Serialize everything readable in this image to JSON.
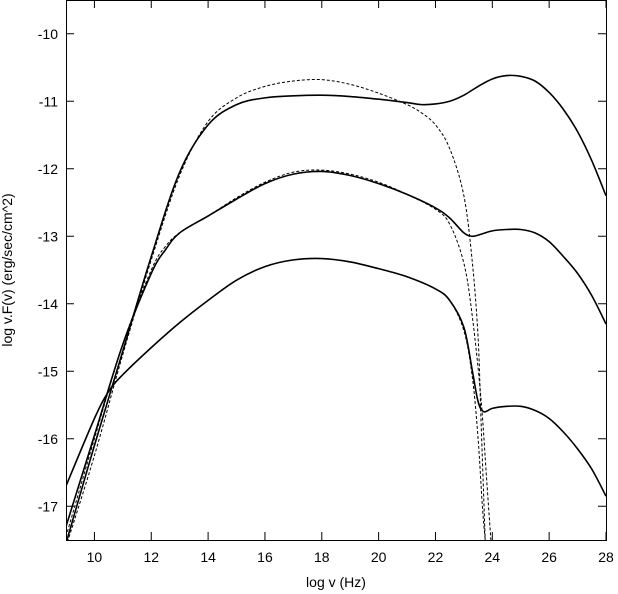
{
  "chart_data": {
    "type": "line",
    "xlabel": "log v (Hz)",
    "ylabel": "log v.F(v) (erg/sec/cm^2)",
    "xlim": [
      9,
      28
    ],
    "ylim": [
      -17.5,
      -9.5
    ],
    "xticks": [
      10,
      12,
      14,
      16,
      18,
      20,
      22,
      24,
      26,
      28
    ],
    "yticks": [
      -17,
      -16,
      -15,
      -14,
      -13,
      -12,
      -11,
      -10
    ],
    "xtick_labels": [
      "10",
      "12",
      "14",
      "16",
      "18",
      "20",
      "22",
      "24",
      "26",
      "28"
    ],
    "ytick_labels": [
      "-17",
      "-16",
      "-15",
      "-14",
      "-13",
      "-12",
      "-11",
      "-10"
    ],
    "grid": false,
    "legend": "none",
    "series": [
      {
        "style": "solid",
        "points": [
          [
            9,
            -17.55
          ],
          [
            10,
            -16.1
          ],
          [
            11,
            -14.7
          ],
          [
            12,
            -13.3
          ],
          [
            13,
            -12.05
          ],
          [
            14,
            -11.35
          ],
          [
            15,
            -11.05
          ],
          [
            16,
            -10.95
          ],
          [
            17,
            -10.92
          ],
          [
            18,
            -10.91
          ],
          [
            19,
            -10.93
          ],
          [
            20,
            -10.97
          ],
          [
            21,
            -11.02
          ],
          [
            21.5,
            -11.05
          ],
          [
            22,
            -11.04
          ],
          [
            22.5,
            -11.0
          ],
          [
            23,
            -10.91
          ],
          [
            23.5,
            -10.78
          ],
          [
            24,
            -10.67
          ],
          [
            24.5,
            -10.62
          ],
          [
            25,
            -10.63
          ],
          [
            25.5,
            -10.7
          ],
          [
            26,
            -10.87
          ],
          [
            26.5,
            -11.12
          ],
          [
            27,
            -11.45
          ],
          [
            27.5,
            -11.88
          ],
          [
            28,
            -12.4
          ]
        ]
      },
      {
        "style": "dashed",
        "points": [
          [
            9,
            -17.6
          ],
          [
            10,
            -16.25
          ],
          [
            11,
            -14.75
          ],
          [
            12,
            -13.35
          ],
          [
            13,
            -12.1
          ],
          [
            14,
            -11.3
          ],
          [
            15,
            -10.95
          ],
          [
            16,
            -10.78
          ],
          [
            17,
            -10.7
          ],
          [
            18,
            -10.68
          ],
          [
            19,
            -10.75
          ],
          [
            20,
            -10.88
          ],
          [
            21,
            -11.05
          ],
          [
            21.5,
            -11.17
          ],
          [
            22,
            -11.35
          ],
          [
            22.5,
            -11.7
          ],
          [
            23,
            -12.4
          ],
          [
            23.3,
            -13.4
          ],
          [
            23.5,
            -14.5
          ],
          [
            23.6,
            -15.7
          ],
          [
            23.7,
            -16.9
          ],
          [
            23.75,
            -17.5
          ]
        ]
      },
      {
        "style": "solid",
        "points": [
          [
            9,
            -17.3
          ],
          [
            10,
            -15.95
          ],
          [
            11,
            -14.6
          ],
          [
            12,
            -13.55
          ],
          [
            12.5,
            -13.2
          ],
          [
            13,
            -12.95
          ],
          [
            14,
            -12.7
          ],
          [
            15,
            -12.45
          ],
          [
            16,
            -12.22
          ],
          [
            17,
            -12.08
          ],
          [
            18,
            -12.04
          ],
          [
            19,
            -12.1
          ],
          [
            20,
            -12.22
          ],
          [
            21,
            -12.38
          ],
          [
            22,
            -12.58
          ],
          [
            22.5,
            -12.73
          ],
          [
            23,
            -12.95
          ],
          [
            23.3,
            -13.0
          ],
          [
            23.6,
            -12.97
          ],
          [
            24,
            -12.92
          ],
          [
            24.5,
            -12.9
          ],
          [
            25,
            -12.9
          ],
          [
            25.5,
            -12.95
          ],
          [
            26,
            -13.08
          ],
          [
            26.5,
            -13.3
          ],
          [
            27,
            -13.55
          ],
          [
            27.5,
            -13.88
          ],
          [
            28,
            -14.3
          ]
        ]
      },
      {
        "style": "dashed",
        "points": [
          [
            9,
            -17.45
          ],
          [
            10,
            -16.0
          ],
          [
            11,
            -14.6
          ],
          [
            12,
            -13.5
          ],
          [
            12.5,
            -13.15
          ],
          [
            13,
            -12.95
          ],
          [
            14,
            -12.7
          ],
          [
            15,
            -12.43
          ],
          [
            16,
            -12.2
          ],
          [
            17,
            -12.05
          ],
          [
            18,
            -12.02
          ],
          [
            19,
            -12.08
          ],
          [
            20,
            -12.2
          ],
          [
            21,
            -12.38
          ],
          [
            22,
            -12.6
          ],
          [
            22.5,
            -12.82
          ],
          [
            23,
            -13.4
          ],
          [
            23.3,
            -14.2
          ],
          [
            23.6,
            -15.4
          ],
          [
            23.8,
            -16.6
          ],
          [
            23.95,
            -17.5
          ]
        ]
      },
      {
        "style": "solid",
        "points": [
          [
            9,
            -16.7
          ],
          [
            10,
            -15.7
          ],
          [
            10.5,
            -15.3
          ],
          [
            11,
            -15.05
          ],
          [
            12,
            -14.65
          ],
          [
            13,
            -14.28
          ],
          [
            14,
            -13.95
          ],
          [
            15,
            -13.65
          ],
          [
            16,
            -13.45
          ],
          [
            17,
            -13.35
          ],
          [
            18,
            -13.33
          ],
          [
            19,
            -13.38
          ],
          [
            20,
            -13.48
          ],
          [
            21,
            -13.6
          ],
          [
            22,
            -13.78
          ],
          [
            22.5,
            -13.95
          ],
          [
            23,
            -14.35
          ],
          [
            23.3,
            -15.0
          ],
          [
            23.5,
            -15.45
          ],
          [
            23.7,
            -15.6
          ],
          [
            24,
            -15.55
          ],
          [
            24.5,
            -15.52
          ],
          [
            25,
            -15.52
          ],
          [
            25.5,
            -15.58
          ],
          [
            26,
            -15.7
          ],
          [
            26.5,
            -15.9
          ],
          [
            27,
            -16.15
          ],
          [
            27.5,
            -16.45
          ],
          [
            28,
            -16.85
          ]
        ]
      },
      {
        "style": "dashed",
        "points": [
          [
            9,
            -16.7
          ],
          [
            10,
            -15.7
          ],
          [
            10.5,
            -15.3
          ],
          [
            11,
            -15.05
          ],
          [
            12,
            -14.65
          ],
          [
            13,
            -14.28
          ],
          [
            14,
            -13.95
          ],
          [
            15,
            -13.65
          ],
          [
            16,
            -13.45
          ],
          [
            17,
            -13.35
          ],
          [
            18,
            -13.33
          ],
          [
            19,
            -13.38
          ],
          [
            20,
            -13.48
          ],
          [
            21,
            -13.6
          ],
          [
            22,
            -13.78
          ],
          [
            22.5,
            -13.95
          ],
          [
            23,
            -14.4
          ],
          [
            23.3,
            -15.1
          ],
          [
            23.5,
            -16.0
          ],
          [
            23.65,
            -17.0
          ],
          [
            23.75,
            -17.5
          ]
        ]
      }
    ]
  }
}
